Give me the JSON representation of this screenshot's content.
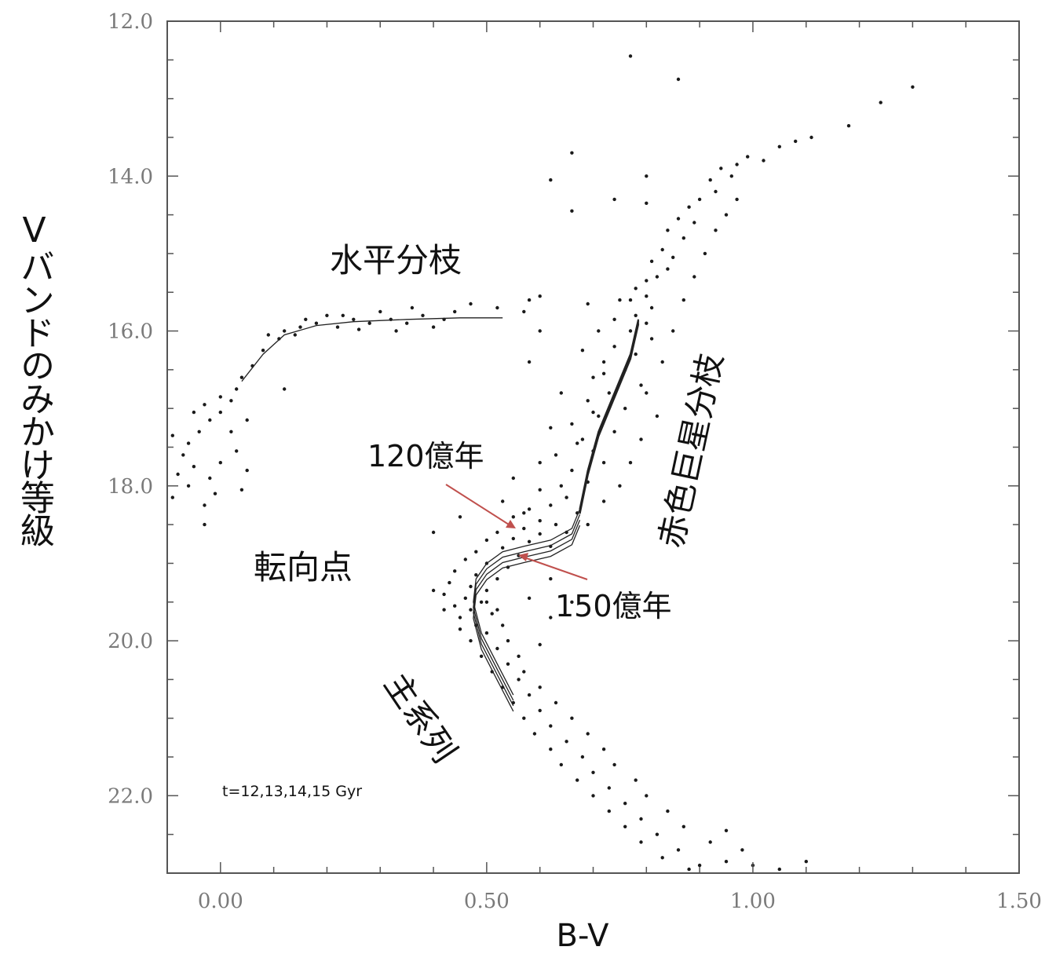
{
  "chart_data": {
    "type": "scatter",
    "title": "",
    "xlabel": "B-V",
    "ylabel": "Vバンドのみかけ等級",
    "xlim": [
      -0.1,
      1.5
    ],
    "ylim": [
      23.0,
      12.0
    ],
    "y_inverted": true,
    "grid": false,
    "xticks": [
      0.0,
      0.5,
      1.0,
      1.5
    ],
    "xtick_labels": [
      "0.00",
      "0.50",
      "1.00",
      "1.50"
    ],
    "yticks": [
      12.0,
      14.0,
      16.0,
      18.0,
      20.0,
      22.0
    ],
    "ytick_labels": [
      "12.0",
      "14.0",
      "16.0",
      "18.0",
      "20.0",
      "22.0"
    ],
    "annotations": {
      "horizontal_branch": "水平分枝",
      "red_giant_branch": "赤色巨星分枝",
      "turnoff": "転向点",
      "main_sequence": "主系列",
      "age_12": "120億年",
      "age_15": "150億年",
      "isochrone_note": "t=12,13,14,15 Gyr"
    },
    "arrow_color": "#c0504d",
    "point_color": "#1a1a1a",
    "isochrone_ages_gyr": [
      12,
      13,
      14,
      15
    ],
    "isochrone_paths": {
      "main_sequence_to_turnoff": [
        [
          0.55,
          20.7
        ],
        [
          0.52,
          20.3
        ],
        [
          0.49,
          19.9
        ],
        [
          0.475,
          19.5
        ],
        [
          0.48,
          19.2
        ],
        [
          0.5,
          19.0
        ],
        [
          0.53,
          18.85
        ],
        [
          0.57,
          18.78
        ],
        [
          0.62,
          18.7
        ],
        [
          0.66,
          18.55
        ],
        [
          0.675,
          18.3
        ]
      ],
      "red_giant_branch": [
        [
          0.675,
          18.3
        ],
        [
          0.69,
          17.8
        ],
        [
          0.71,
          17.3
        ],
        [
          0.74,
          16.8
        ],
        [
          0.77,
          16.3
        ],
        [
          0.785,
          15.85
        ]
      ],
      "horizontal_branch": [
        [
          0.04,
          16.65
        ],
        [
          0.08,
          16.3
        ],
        [
          0.12,
          16.05
        ],
        [
          0.18,
          15.93
        ],
        [
          0.25,
          15.88
        ],
        [
          0.35,
          15.85
        ],
        [
          0.45,
          15.83
        ],
        [
          0.53,
          15.83
        ]
      ]
    },
    "stars": [
      [
        0.77,
        12.45
      ],
      [
        0.86,
        12.75
      ],
      [
        1.3,
        12.85
      ],
      [
        1.24,
        13.05
      ],
      [
        1.18,
        13.35
      ],
      [
        1.11,
        13.5
      ],
      [
        1.08,
        13.55
      ],
      [
        1.05,
        13.62
      ],
      [
        0.66,
        13.7
      ],
      [
        0.99,
        13.75
      ],
      [
        1.02,
        13.8
      ],
      [
        0.97,
        13.85
      ],
      [
        0.94,
        13.9
      ],
      [
        0.96,
        14.0
      ],
      [
        0.92,
        14.05
      ],
      [
        0.62,
        14.05
      ],
      [
        0.8,
        14.0
      ],
      [
        0.93,
        14.2
      ],
      [
        0.9,
        14.3
      ],
      [
        0.88,
        14.4
      ],
      [
        0.74,
        14.3
      ],
      [
        0.8,
        14.35
      ],
      [
        0.86,
        14.55
      ],
      [
        0.89,
        14.6
      ],
      [
        0.84,
        14.7
      ],
      [
        0.87,
        14.8
      ],
      [
        0.66,
        14.45
      ],
      [
        0.83,
        14.95
      ],
      [
        0.85,
        15.05
      ],
      [
        0.81,
        15.1
      ],
      [
        0.84,
        15.2
      ],
      [
        0.82,
        15.3
      ],
      [
        0.8,
        15.35
      ],
      [
        0.78,
        15.45
      ],
      [
        0.8,
        15.55
      ],
      [
        0.77,
        15.6
      ],
      [
        0.81,
        15.7
      ],
      [
        0.78,
        15.8
      ],
      [
        0.75,
        15.6
      ],
      [
        0.8,
        15.9
      ],
      [
        0.77,
        16.0
      ],
      [
        0.81,
        16.1
      ],
      [
        0.74,
        16.2
      ],
      [
        0.78,
        16.3
      ],
      [
        0.72,
        16.4
      ],
      [
        0.76,
        16.5
      ],
      [
        0.7,
        16.6
      ],
      [
        0.79,
        16.7
      ],
      [
        0.73,
        16.8
      ],
      [
        0.69,
        16.9
      ],
      [
        0.76,
        17.0
      ],
      [
        0.71,
        17.1
      ],
      [
        0.66,
        17.2
      ],
      [
        0.74,
        17.3
      ],
      [
        0.68,
        17.4
      ],
      [
        0.7,
        17.55
      ],
      [
        0.63,
        17.6
      ],
      [
        0.72,
        17.7
      ],
      [
        0.66,
        17.8
      ],
      [
        0.69,
        17.95
      ],
      [
        0.6,
        18.05
      ],
      [
        0.65,
        18.15
      ],
      [
        0.62,
        18.25
      ],
      [
        0.58,
        18.3
      ],
      [
        0.67,
        18.35
      ],
      [
        0.55,
        18.4
      ],
      [
        0.6,
        18.45
      ],
      [
        0.63,
        18.5
      ],
      [
        0.57,
        18.55
      ],
      [
        0.52,
        18.6
      ],
      [
        0.6,
        18.62
      ],
      [
        0.65,
        18.6
      ],
      [
        0.55,
        18.68
      ],
      [
        0.5,
        18.7
      ],
      [
        0.58,
        18.72
      ],
      [
        0.62,
        18.78
      ],
      [
        0.53,
        18.8
      ],
      [
        0.48,
        18.85
      ],
      [
        0.56,
        18.9
      ],
      [
        0.46,
        18.95
      ],
      [
        0.5,
        19.0
      ],
      [
        0.54,
        19.05
      ],
      [
        0.44,
        19.1
      ],
      [
        0.48,
        19.15
      ],
      [
        0.52,
        19.2
      ],
      [
        0.43,
        19.25
      ],
      [
        0.47,
        19.3
      ],
      [
        0.5,
        19.35
      ],
      [
        0.42,
        19.4
      ],
      [
        0.46,
        19.45
      ],
      [
        0.49,
        19.5
      ],
      [
        0.44,
        19.55
      ],
      [
        0.47,
        19.6
      ],
      [
        0.51,
        19.65
      ],
      [
        0.45,
        19.7
      ],
      [
        0.48,
        19.8
      ],
      [
        0.5,
        19.9
      ],
      [
        0.47,
        20.0
      ],
      [
        0.52,
        20.1
      ],
      [
        0.49,
        20.2
      ],
      [
        0.54,
        20.3
      ],
      [
        0.51,
        20.4
      ],
      [
        0.56,
        20.5
      ],
      [
        0.53,
        20.6
      ],
      [
        0.58,
        20.7
      ],
      [
        0.55,
        20.8
      ],
      [
        0.6,
        20.9
      ],
      [
        0.57,
        21.0
      ],
      [
        0.62,
        21.1
      ],
      [
        0.59,
        21.2
      ],
      [
        0.65,
        21.3
      ],
      [
        0.62,
        21.4
      ],
      [
        0.68,
        21.5
      ],
      [
        0.64,
        21.6
      ],
      [
        0.7,
        21.7
      ],
      [
        0.67,
        21.8
      ],
      [
        0.73,
        21.9
      ],
      [
        0.7,
        22.0
      ],
      [
        0.76,
        22.1
      ],
      [
        0.73,
        22.2
      ],
      [
        0.79,
        22.3
      ],
      [
        0.76,
        22.4
      ],
      [
        0.82,
        22.5
      ],
      [
        0.79,
        22.6
      ],
      [
        0.86,
        22.7
      ],
      [
        0.83,
        22.8
      ],
      [
        0.9,
        22.9
      ],
      [
        0.88,
        22.95
      ],
      [
        0.95,
        22.85
      ],
      [
        1.0,
        22.9
      ],
      [
        1.05,
        22.95
      ],
      [
        1.1,
        22.85
      ],
      [
        0.98,
        22.7
      ],
      [
        0.92,
        22.6
      ],
      [
        0.87,
        22.4
      ],
      [
        0.95,
        22.45
      ],
      [
        0.84,
        22.2
      ],
      [
        0.8,
        22.0
      ],
      [
        0.78,
        21.8
      ],
      [
        0.74,
        21.6
      ],
      [
        0.72,
        21.4
      ],
      [
        0.69,
        21.2
      ],
      [
        0.66,
        21.0
      ],
      [
        0.63,
        20.8
      ],
      [
        0.6,
        20.6
      ],
      [
        0.57,
        20.4
      ],
      [
        0.56,
        20.2
      ],
      [
        0.54,
        20.0
      ],
      [
        0.53,
        19.8
      ],
      [
        0.52,
        19.6
      ],
      [
        0.62,
        19.7
      ],
      [
        0.58,
        19.45
      ],
      [
        0.45,
        19.85
      ],
      [
        0.42,
        19.6
      ],
      [
        0.4,
        19.35
      ],
      [
        0.66,
        19.5
      ],
      [
        0.6,
        20.05
      ],
      [
        0.57,
        18.35
      ],
      [
        0.53,
        18.2
      ],
      [
        0.64,
        18.0
      ],
      [
        0.6,
        17.7
      ],
      [
        0.67,
        17.45
      ],
      [
        0.62,
        17.25
      ],
      [
        0.7,
        17.05
      ],
      [
        0.64,
        16.8
      ],
      [
        0.72,
        16.55
      ],
      [
        0.68,
        16.25
      ],
      [
        0.71,
        16.0
      ],
      [
        0.74,
        15.85
      ],
      [
        0.69,
        15.65
      ],
      [
        0.57,
        15.75
      ],
      [
        0.6,
        15.55
      ],
      [
        0.47,
        15.65
      ],
      [
        0.52,
        15.7
      ],
      [
        0.42,
        15.85
      ],
      [
        0.38,
        15.8
      ],
      [
        0.35,
        15.9
      ],
      [
        0.32,
        15.85
      ],
      [
        0.3,
        15.75
      ],
      [
        0.28,
        15.9
      ],
      [
        0.25,
        15.85
      ],
      [
        0.22,
        15.95
      ],
      [
        0.2,
        15.8
      ],
      [
        0.18,
        15.9
      ],
      [
        0.15,
        15.95
      ],
      [
        0.12,
        16.0
      ],
      [
        0.11,
        16.1
      ],
      [
        0.09,
        16.05
      ],
      [
        0.44,
        15.75
      ],
      [
        0.4,
        15.95
      ],
      [
        0.36,
        15.7
      ],
      [
        0.33,
        16.0
      ],
      [
        0.26,
        15.98
      ],
      [
        0.23,
        15.8
      ],
      [
        0.16,
        15.85
      ],
      [
        0.14,
        16.05
      ],
      [
        0.08,
        16.25
      ],
      [
        0.06,
        16.45
      ],
      [
        0.04,
        16.6
      ],
      [
        0.03,
        16.75
      ],
      [
        0.02,
        16.9
      ],
      [
        0.0,
        17.05
      ],
      [
        -0.02,
        17.15
      ],
      [
        -0.04,
        17.3
      ],
      [
        -0.06,
        17.45
      ],
      [
        -0.07,
        17.6
      ],
      [
        -0.05,
        17.75
      ],
      [
        -0.08,
        17.85
      ],
      [
        -0.06,
        18.0
      ],
      [
        -0.09,
        18.15
      ],
      [
        -0.03,
        18.25
      ],
      [
        -0.02,
        17.9
      ],
      [
        0.0,
        17.7
      ],
      [
        -0.01,
        18.1
      ],
      [
        -0.03,
        18.5
      ],
      [
        0.02,
        17.3
      ],
      [
        0.03,
        17.55
      ],
      [
        0.05,
        17.8
      ],
      [
        0.04,
        18.05
      ],
      [
        0.05,
        17.15
      ],
      [
        -0.03,
        16.95
      ],
      [
        -0.05,
        17.05
      ],
      [
        0.0,
        16.85
      ],
      [
        0.12,
        16.75
      ],
      [
        -0.09,
        17.35
      ],
      [
        0.58,
        15.6
      ],
      [
        0.6,
        16.0
      ],
      [
        0.58,
        16.4
      ],
      [
        0.55,
        17.9
      ],
      [
        0.45,
        18.4
      ],
      [
        0.4,
        18.6
      ],
      [
        0.5,
        19.5
      ],
      [
        0.62,
        19.2
      ],
      [
        0.69,
        18.5
      ],
      [
        0.72,
        18.2
      ],
      [
        0.75,
        18.0
      ],
      [
        0.77,
        17.7
      ],
      [
        0.79,
        17.4
      ],
      [
        0.82,
        17.1
      ],
      [
        0.8,
        16.8
      ],
      [
        0.83,
        16.4
      ],
      [
        0.85,
        16.0
      ],
      [
        0.87,
        15.6
      ],
      [
        0.89,
        15.3
      ],
      [
        0.91,
        15.0
      ],
      [
        0.93,
        14.7
      ],
      [
        0.95,
        14.5
      ],
      [
        0.97,
        14.3
      ]
    ]
  }
}
